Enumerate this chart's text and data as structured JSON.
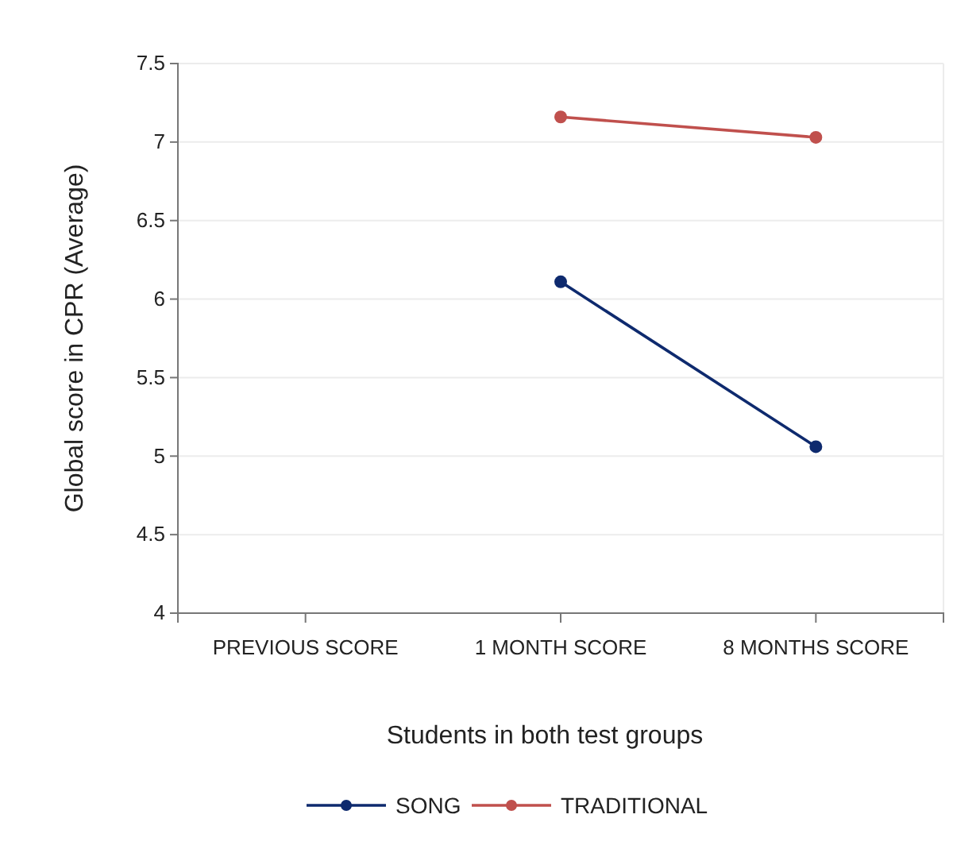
{
  "chart_data": {
    "type": "line",
    "xlabel": "Students in both test groups",
    "ylabel": "Global score in CPR (Average)",
    "categories": [
      "PREVIOUS SCORE",
      "1 MONTH SCORE",
      "8 MONTHS SCORE"
    ],
    "series": [
      {
        "name": "SONG",
        "color": "#0e2a6e",
        "values": [
          null,
          6.11,
          5.06
        ]
      },
      {
        "name": "TRADITIONAL",
        "color": "#c0504d",
        "values": [
          null,
          7.16,
          7.03
        ]
      }
    ],
    "ylim": [
      4,
      7.5
    ],
    "yticks": [
      4,
      4.5,
      5,
      5.5,
      6,
      6.5,
      7,
      7.5
    ],
    "grid": "y",
    "legend": "bottom",
    "marker": "circle",
    "line_style": "solid"
  }
}
